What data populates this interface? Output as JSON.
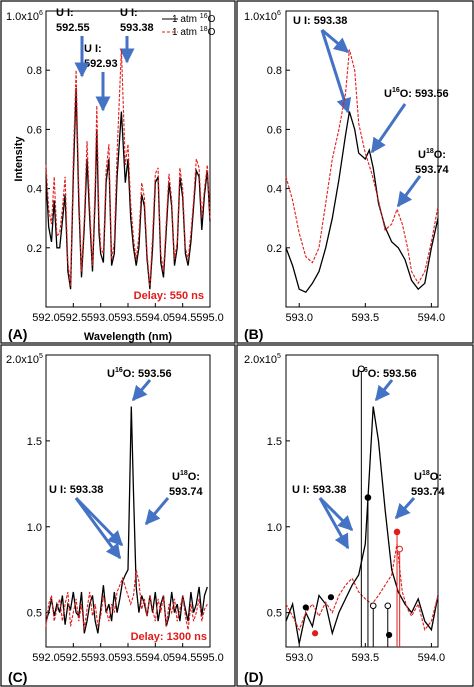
{
  "chart_data": [
    {
      "panel": "(A)",
      "type": "line",
      "xlabel": "Wavelength (nm)",
      "ylabel": "Intensity",
      "xlim": [
        592.0,
        595.0
      ],
      "ylim": [
        0.0,
        1.0
      ],
      "y_exponent": "6",
      "y_exponent_base": "1.0x10",
      "x_ticks": [
        "592.0",
        "592.5",
        "593.0",
        "593.5",
        "594.0",
        "594.5",
        "595.0"
      ],
      "y_ticks": [
        "0.2",
        "0.4",
        "0.6",
        "0.8"
      ],
      "delay": "Delay: 550 ns",
      "legend": [
        "1 atm ",
        "1 atm "
      ],
      "legend_iso": [
        "16",
        "18"
      ],
      "legend_el": [
        "O",
        "O"
      ],
      "annotations": [
        {
          "text": "U I:",
          "value": "592.55"
        },
        {
          "text": "U I:",
          "value": "592.93"
        },
        {
          "text": "U I:",
          "value": "593.38"
        }
      ],
      "series": [
        {
          "name": "1 atm 16O",
          "color": "#000000",
          "x": [
            592.0,
            592.05,
            592.1,
            592.15,
            592.2,
            592.25,
            592.3,
            592.35,
            592.4,
            592.45,
            592.5,
            592.55,
            592.6,
            592.65,
            592.7,
            592.75,
            592.8,
            592.85,
            592.9,
            592.93,
            592.97,
            593.0,
            593.05,
            593.1,
            593.15,
            593.2,
            593.25,
            593.3,
            593.38,
            593.45,
            593.5,
            593.55,
            593.6,
            593.65,
            593.7,
            593.75,
            593.8,
            593.85,
            593.9,
            593.95,
            594.0,
            594.05,
            594.1,
            594.15,
            594.2,
            594.25,
            594.3,
            594.35,
            594.4,
            594.45,
            594.5,
            594.55,
            594.6,
            594.65,
            594.7,
            594.75,
            594.8,
            594.85,
            594.9,
            594.95,
            595.0
          ],
          "y": [
            0.44,
            0.27,
            0.22,
            0.36,
            0.2,
            0.2,
            0.29,
            0.38,
            0.12,
            0.06,
            0.44,
            0.74,
            0.35,
            0.1,
            0.27,
            0.5,
            0.3,
            0.12,
            0.37,
            0.6,
            0.25,
            0.18,
            0.15,
            0.42,
            0.5,
            0.14,
            0.18,
            0.44,
            0.66,
            0.42,
            0.5,
            0.3,
            0.2,
            0.14,
            0.2,
            0.38,
            0.34,
            0.16,
            0.06,
            0.2,
            0.42,
            0.44,
            0.15,
            0.1,
            0.26,
            0.42,
            0.34,
            0.14,
            0.2,
            0.44,
            0.37,
            0.18,
            0.14,
            0.22,
            0.34,
            0.46,
            0.44,
            0.26,
            0.38,
            0.46,
            0.29
          ]
        },
        {
          "name": "1 atm 18O",
          "color": "#e21b1b",
          "x": [
            592.0,
            592.05,
            592.1,
            592.15,
            592.2,
            592.25,
            592.3,
            592.35,
            592.4,
            592.45,
            592.5,
            592.55,
            592.6,
            592.65,
            592.7,
            592.75,
            592.8,
            592.85,
            592.9,
            592.93,
            592.97,
            593.0,
            593.05,
            593.1,
            593.15,
            593.2,
            593.25,
            593.3,
            593.38,
            593.45,
            593.5,
            593.55,
            593.6,
            593.65,
            593.7,
            593.75,
            593.8,
            593.85,
            593.9,
            593.95,
            594.0,
            594.05,
            594.1,
            594.15,
            594.2,
            594.25,
            594.3,
            594.35,
            594.4,
            594.45,
            594.5,
            594.55,
            594.6,
            594.65,
            594.7,
            594.75,
            594.8,
            594.85,
            594.9,
            594.95,
            595.0
          ],
          "y": [
            0.48,
            0.33,
            0.28,
            0.44,
            0.24,
            0.25,
            0.33,
            0.44,
            0.15,
            0.07,
            0.5,
            0.8,
            0.4,
            0.12,
            0.3,
            0.56,
            0.34,
            0.14,
            0.42,
            0.68,
            0.3,
            0.2,
            0.18,
            0.46,
            0.55,
            0.16,
            0.22,
            0.52,
            0.87,
            0.48,
            0.55,
            0.35,
            0.23,
            0.16,
            0.24,
            0.42,
            0.37,
            0.18,
            0.07,
            0.24,
            0.45,
            0.47,
            0.18,
            0.12,
            0.29,
            0.45,
            0.36,
            0.16,
            0.22,
            0.47,
            0.4,
            0.2,
            0.16,
            0.25,
            0.36,
            0.5,
            0.47,
            0.3,
            0.4,
            0.48,
            0.3
          ]
        }
      ]
    },
    {
      "panel": "(B)",
      "type": "line",
      "xlim": [
        592.9,
        594.05
      ],
      "ylim": [
        0.0,
        1.0
      ],
      "y_exponent": "6",
      "y_exponent_base": "1.0x10",
      "x_ticks": [
        "593.0",
        "593.5",
        "594.0"
      ],
      "y_ticks": [
        "0.2",
        "0.4",
        "0.6",
        "0.8"
      ],
      "annotations": [
        {
          "text": "U I: 593.38"
        },
        {
          "pre": "U",
          "iso": "16",
          "post": "O: 593.56"
        },
        {
          "pre": "U",
          "iso": "18",
          "post": "O:",
          "value": "593.74"
        }
      ],
      "series": [
        {
          "name": "1 atm 16O",
          "color": "#000000",
          "x": [
            592.9,
            592.95,
            593.0,
            593.05,
            593.1,
            593.15,
            593.2,
            593.25,
            593.3,
            593.35,
            593.38,
            593.42,
            593.45,
            593.5,
            593.53,
            593.56,
            593.6,
            593.65,
            593.7,
            593.75,
            593.8,
            593.85,
            593.9,
            593.95,
            594.0,
            594.05
          ],
          "y": [
            0.2,
            0.14,
            0.06,
            0.05,
            0.08,
            0.12,
            0.2,
            0.3,
            0.43,
            0.58,
            0.66,
            0.6,
            0.52,
            0.5,
            0.53,
            0.47,
            0.35,
            0.27,
            0.22,
            0.2,
            0.16,
            0.09,
            0.06,
            0.08,
            0.2,
            0.3
          ]
        },
        {
          "name": "1 atm 18O",
          "color": "#e21b1b",
          "x": [
            592.9,
            592.95,
            593.0,
            593.05,
            593.1,
            593.15,
            593.2,
            593.25,
            593.3,
            593.35,
            593.38,
            593.42,
            593.45,
            593.5,
            593.55,
            593.6,
            593.65,
            593.7,
            593.74,
            593.78,
            593.82,
            593.85,
            593.9,
            593.95,
            594.0,
            594.05
          ],
          "y": [
            0.44,
            0.36,
            0.25,
            0.17,
            0.15,
            0.2,
            0.35,
            0.5,
            0.6,
            0.72,
            0.87,
            0.8,
            0.62,
            0.52,
            0.45,
            0.36,
            0.26,
            0.28,
            0.33,
            0.28,
            0.2,
            0.12,
            0.08,
            0.12,
            0.22,
            0.34
          ]
        }
      ]
    },
    {
      "panel": "(C)",
      "type": "line",
      "xlim": [
        592.0,
        595.0
      ],
      "ylim": [
        0.3,
        2.0
      ],
      "y_exponent": "5",
      "y_exponent_base": "2.0x10",
      "x_ticks": [
        "592.0",
        "592.5",
        "593.0",
        "593.5",
        "594.0",
        "594.5",
        "595.0"
      ],
      "y_ticks": [
        "0.5",
        "1.0",
        "1.5"
      ],
      "delay": "Delay: 1300 ns",
      "annotations": [
        {
          "pre": "U",
          "iso": "16",
          "post": "O: 593.56"
        },
        {
          "text": "U I: 593.38"
        },
        {
          "pre": "U",
          "iso": "18",
          "post": "O:",
          "value": "593.74"
        }
      ],
      "series": [
        {
          "name": "1 atm 16O",
          "color": "#000000",
          "x": [
            592.0,
            592.05,
            592.1,
            592.15,
            592.2,
            592.25,
            592.3,
            592.35,
            592.4,
            592.45,
            592.5,
            592.55,
            592.6,
            592.65,
            592.7,
            592.75,
            592.8,
            592.85,
            592.9,
            592.95,
            593.0,
            593.05,
            593.1,
            593.15,
            593.2,
            593.25,
            593.3,
            593.35,
            593.4,
            593.45,
            593.5,
            593.53,
            593.56,
            593.6,
            593.65,
            593.7,
            593.75,
            593.8,
            593.85,
            593.9,
            593.95,
            594.0,
            594.05,
            594.1,
            594.15,
            594.2,
            594.25,
            594.3,
            594.35,
            594.4,
            594.45,
            594.5,
            594.55,
            594.6,
            594.65,
            594.7,
            594.75,
            594.8,
            594.85,
            594.9,
            594.95
          ],
          "y": [
            0.45,
            0.5,
            0.58,
            0.48,
            0.55,
            0.5,
            0.6,
            0.43,
            0.55,
            0.52,
            0.62,
            0.5,
            0.48,
            0.62,
            0.38,
            0.45,
            0.55,
            0.6,
            0.45,
            0.38,
            0.52,
            0.66,
            0.5,
            0.55,
            0.45,
            0.62,
            0.5,
            0.58,
            0.68,
            0.72,
            0.75,
            1.2,
            1.7,
            1.2,
            0.65,
            0.5,
            0.6,
            0.55,
            0.48,
            0.6,
            0.5,
            0.62,
            0.45,
            0.55,
            0.6,
            0.42,
            0.48,
            0.62,
            0.5,
            0.55,
            0.45,
            0.6,
            0.52,
            0.45,
            0.62,
            0.5,
            0.55,
            0.65,
            0.48,
            0.6,
            0.65
          ]
        },
        {
          "name": "1 atm 18O",
          "color": "#e21b1b",
          "x": [
            592.0,
            592.05,
            592.1,
            592.15,
            592.2,
            592.25,
            592.3,
            592.35,
            592.4,
            592.45,
            592.5,
            592.55,
            592.6,
            592.65,
            592.7,
            592.75,
            592.8,
            592.85,
            592.9,
            592.95,
            593.0,
            593.05,
            593.1,
            593.15,
            593.2,
            593.25,
            593.3,
            593.35,
            593.4,
            593.45,
            593.5,
            593.55,
            593.6,
            593.65,
            593.7,
            593.75,
            593.8,
            593.85,
            593.9,
            593.95,
            594.0,
            594.05,
            594.1,
            594.15,
            594.2,
            594.25,
            594.3,
            594.35,
            594.4,
            594.45,
            594.5,
            594.55,
            594.6,
            594.65,
            594.7,
            594.75,
            594.8,
            594.85,
            594.9,
            594.95
          ],
          "y": [
            0.42,
            0.55,
            0.6,
            0.45,
            0.52,
            0.58,
            0.45,
            0.55,
            0.62,
            0.42,
            0.5,
            0.58,
            0.45,
            0.55,
            0.4,
            0.52,
            0.62,
            0.48,
            0.55,
            0.42,
            0.48,
            0.6,
            0.52,
            0.45,
            0.55,
            0.5,
            0.62,
            0.66,
            0.7,
            0.65,
            0.6,
            0.55,
            0.6,
            0.75,
            0.68,
            0.52,
            0.58,
            0.48,
            0.6,
            0.52,
            0.45,
            0.58,
            0.5,
            0.6,
            0.42,
            0.55,
            0.5,
            0.58,
            0.45,
            0.52,
            0.6,
            0.48,
            0.4,
            0.55,
            0.45,
            0.5,
            0.58,
            0.45,
            0.52,
            0.55
          ]
        }
      ]
    },
    {
      "panel": "(D)",
      "type": "line",
      "xlim": [
        592.9,
        594.05
      ],
      "ylim": [
        0.3,
        2.0
      ],
      "y_exponent": "5",
      "y_exponent_base": "2.0x10",
      "x_ticks": [
        "593.0",
        "593.5",
        "594.0"
      ],
      "y_ticks": [
        "0.5",
        "1.0",
        "1.5"
      ],
      "annotations": [
        {
          "pre": "U",
          "iso": "16",
          "post": "O: 593.56"
        },
        {
          "text": "U I: 593.38"
        },
        {
          "pre": "U",
          "iso": "18",
          "post": "O:",
          "value": "593.74"
        }
      ],
      "series": [
        {
          "name": "1 atm 16O",
          "color": "#000000",
          "x": [
            592.9,
            592.95,
            593.0,
            593.05,
            593.1,
            593.15,
            593.2,
            593.25,
            593.3,
            593.35,
            593.4,
            593.45,
            593.5,
            593.53,
            593.56,
            593.6,
            593.65,
            593.7,
            593.75,
            593.8,
            593.85,
            593.9,
            593.95,
            594.0,
            594.05
          ],
          "y": [
            0.45,
            0.55,
            0.32,
            0.5,
            0.42,
            0.6,
            0.55,
            0.38,
            0.5,
            0.58,
            0.66,
            0.72,
            0.9,
            1.3,
            1.7,
            1.5,
            1.1,
            0.75,
            0.62,
            0.55,
            0.5,
            0.58,
            0.45,
            0.4,
            0.6
          ]
        },
        {
          "name": "1 atm 18O",
          "color": "#e21b1b",
          "x": [
            592.9,
            592.95,
            593.0,
            593.05,
            593.1,
            593.15,
            593.2,
            593.25,
            593.3,
            593.35,
            593.4,
            593.45,
            593.5,
            593.55,
            593.6,
            593.65,
            593.7,
            593.74,
            593.78,
            593.82,
            593.85,
            593.9,
            593.95,
            594.0,
            594.05
          ],
          "y": [
            0.55,
            0.48,
            0.4,
            0.5,
            0.55,
            0.48,
            0.56,
            0.5,
            0.6,
            0.66,
            0.7,
            0.62,
            0.58,
            0.55,
            0.6,
            0.66,
            0.72,
            0.9,
            0.62,
            0.52,
            0.48,
            0.55,
            0.4,
            0.45,
            0.6
          ]
        }
      ],
      "stick_lines": [
        {
          "x": 593.47,
          "y": 1.92,
          "color": "#000000",
          "marker": "open"
        },
        {
          "x": 593.52,
          "y": 1.17,
          "color": "#000000",
          "marker": "filled"
        },
        {
          "x": 593.56,
          "y": 0.54,
          "color": "#000000",
          "marker": "open"
        },
        {
          "x": 593.67,
          "y": 0.54,
          "color": "#000000",
          "marker": "open"
        },
        {
          "x": 593.74,
          "y": 0.97,
          "color": "#e21b1b",
          "marker": "filled"
        },
        {
          "x": 593.76,
          "y": 0.87,
          "color": "#e21b1b",
          "marker": "open"
        }
      ],
      "dots": [
        {
          "x": 593.05,
          "y": 0.53,
          "color": "#000000"
        },
        {
          "x": 593.12,
          "y": 0.38,
          "color": "#e21b1b"
        },
        {
          "x": 593.24,
          "y": 0.59,
          "color": "#000000"
        },
        {
          "x": 593.68,
          "y": 0.37,
          "color": "#000000"
        }
      ]
    }
  ]
}
